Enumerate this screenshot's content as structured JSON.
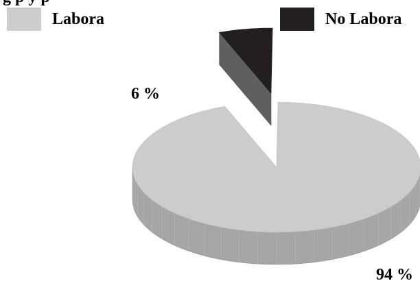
{
  "title": "g                  p   y    p",
  "chart_data": {
    "type": "pie",
    "title": "",
    "legend_position": "top",
    "slices": [
      {
        "label": "Labora",
        "value": 94,
        "value_label": "94 %",
        "color": "#cccccc",
        "side_color": "#a6a6a6"
      },
      {
        "label": "No Labora",
        "value": 6,
        "value_label": "6 %",
        "color": "#231f20",
        "side_color": "#5f5f5f"
      }
    ],
    "exploded": "No Labora",
    "style": "3d"
  }
}
